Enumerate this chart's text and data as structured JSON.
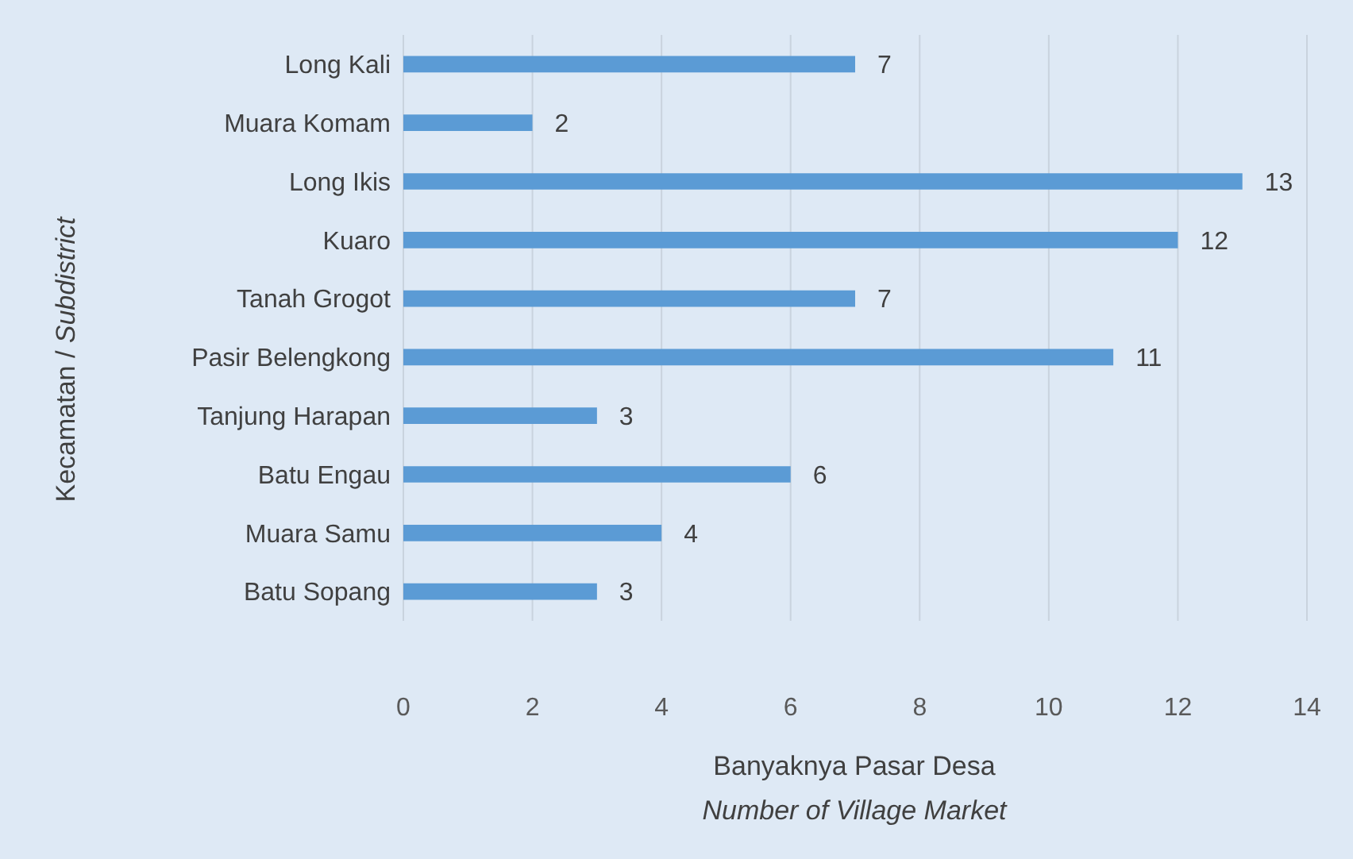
{
  "chart_data": {
    "type": "bar",
    "orientation": "horizontal",
    "categories": [
      "Long Kali",
      "Muara Komam",
      "Long Ikis",
      "Kuaro",
      "Tanah Grogot",
      "Pasir Belengkong",
      "Tanjung Harapan",
      "Batu Engau",
      "Muara Samu",
      "Batu Sopang"
    ],
    "values": [
      7,
      2,
      13,
      12,
      7,
      11,
      3,
      6,
      4,
      3
    ],
    "color": "#5b9bd5",
    "xlim": [
      0,
      14
    ],
    "xticks": [
      0,
      2,
      4,
      6,
      8,
      10,
      12,
      14
    ],
    "grid": "x",
    "data_labels": true,
    "xlabel": "Banyaknya Pasar Desa\nNumber of Village Market",
    "ylabel": "Kecamatan / Subdistrict",
    "legend": false
  }
}
